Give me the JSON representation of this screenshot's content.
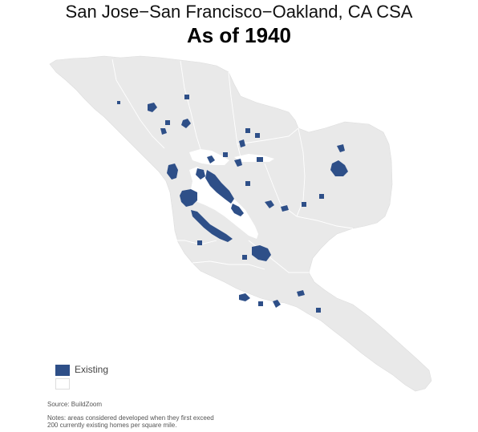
{
  "header": {
    "title": "San Jose−San Francisco−Oakland, CA CSA",
    "subtitle": "As of 1940"
  },
  "map": {
    "land_color": "#e9e9e9",
    "boundary_color": "#ffffff",
    "developed_color": "#2e4f88"
  },
  "legend": {
    "items": [
      {
        "label": "Existing",
        "color": "#2e4f88"
      },
      {
        "label": "",
        "color": "#ffffff"
      }
    ]
  },
  "footer": {
    "source": "Source: BuildZoom",
    "notes_line1": "Notes: areas considered developed when they first exceed",
    "notes_line2": "200 currently existing homes per square mile."
  }
}
